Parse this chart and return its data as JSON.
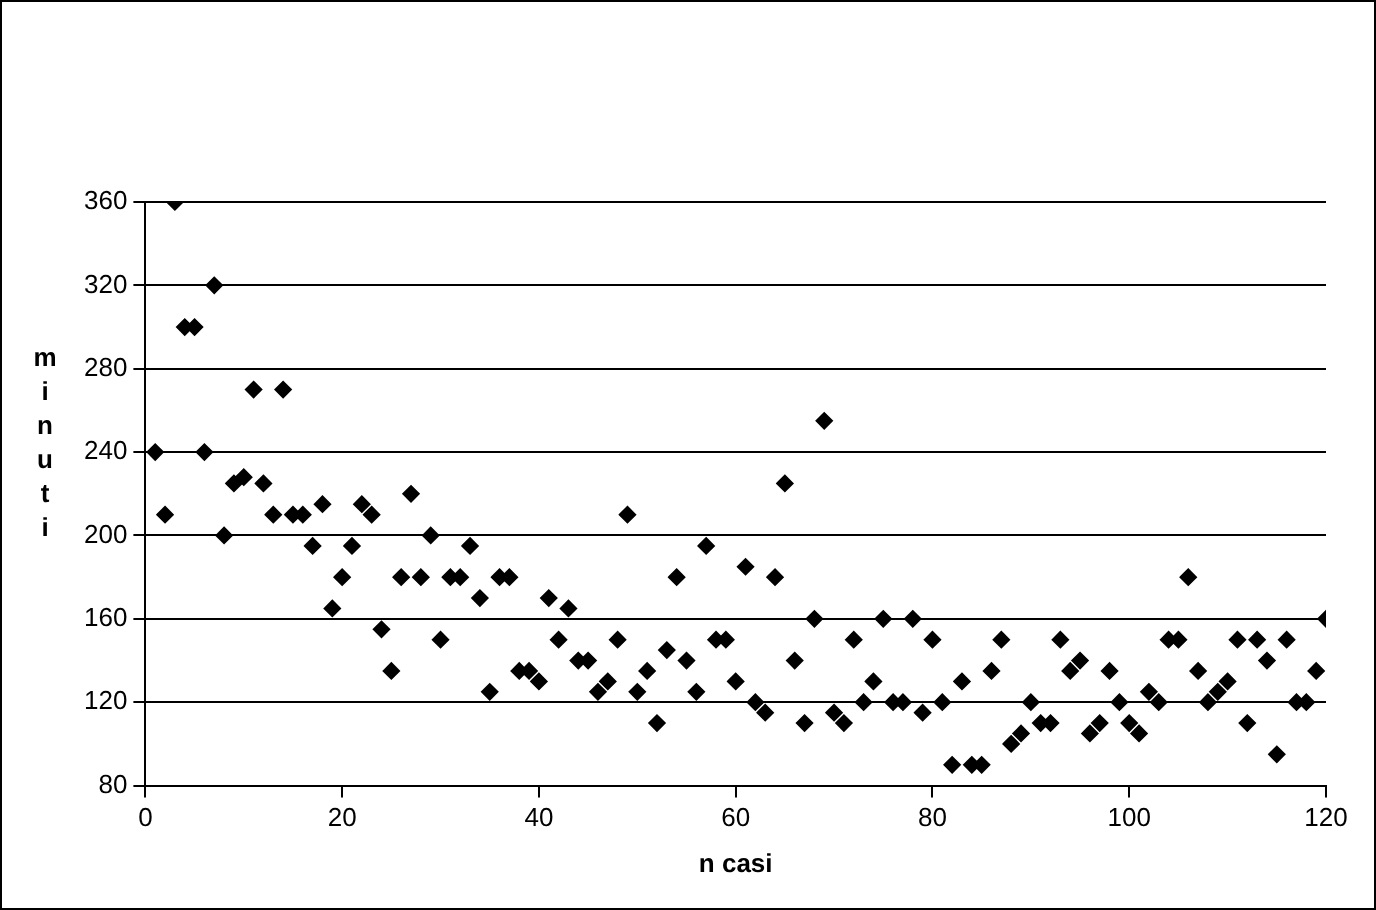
{
  "chart_data": {
    "type": "scatter",
    "xlabel": "n casi",
    "ylabel": "minuti",
    "series": [
      {
        "color": "#000000",
        "x": [
          1,
          2,
          3,
          4,
          5,
          6,
          7,
          8,
          9,
          10,
          11,
          12,
          13,
          14,
          15,
          16,
          17,
          18,
          19,
          20,
          21,
          22,
          23,
          24,
          25,
          26,
          27,
          28,
          29,
          30,
          31,
          32,
          33,
          34,
          35,
          36,
          37,
          38,
          39,
          40,
          41,
          42,
          43,
          44,
          45,
          46,
          47,
          48,
          49,
          50,
          51,
          52,
          53,
          54,
          55,
          56,
          57,
          58,
          59,
          60,
          61,
          62,
          63,
          64,
          65,
          66,
          67,
          68,
          69,
          70,
          71,
          72,
          73,
          74,
          75,
          76,
          77,
          78,
          79,
          80,
          81,
          82,
          83,
          84,
          85,
          86,
          87,
          88,
          89,
          90,
          91,
          92,
          93,
          94,
          95,
          96,
          97,
          98,
          99,
          100,
          101,
          102,
          103,
          104,
          105,
          106,
          107,
          108,
          109,
          110,
          111,
          112,
          113,
          114,
          115,
          116,
          117,
          118,
          119,
          120
        ],
        "values": [
          240,
          210,
          360,
          300,
          300,
          240,
          320,
          200,
          225,
          228,
          270,
          225,
          210,
          270,
          210,
          210,
          195,
          215,
          165,
          180,
          195,
          215,
          210,
          155,
          135,
          180,
          220,
          180,
          200,
          150,
          180,
          180,
          195,
          170,
          125,
          180,
          180,
          135,
          135,
          130,
          170,
          150,
          165,
          140,
          140,
          125,
          130,
          150,
          210,
          125,
          135,
          110,
          145,
          180,
          140,
          125,
          195,
          150,
          150,
          130,
          185,
          120,
          115,
          180,
          225,
          140,
          110,
          160,
          255,
          115,
          110,
          150,
          120,
          130,
          160,
          120,
          120,
          160,
          115,
          150,
          120,
          90,
          130,
          90,
          90,
          135,
          150,
          100,
          105,
          120,
          110,
          110,
          150,
          135,
          140,
          105,
          110,
          135,
          120,
          110,
          105,
          125,
          120,
          150,
          150,
          180,
          135,
          120,
          125,
          130,
          150,
          110,
          150,
          140,
          95,
          150,
          120,
          120,
          135,
          160
        ]
      }
    ],
    "xlim": [
      0,
      120
    ],
    "xticks": [
      0,
      20,
      40,
      60,
      80,
      100,
      120
    ],
    "ylim": [
      80,
      360
    ],
    "yticks": [
      80,
      120,
      160,
      200,
      240,
      280,
      320,
      360
    ],
    "grid": "y",
    "marker": "diamond",
    "legend": false
  }
}
